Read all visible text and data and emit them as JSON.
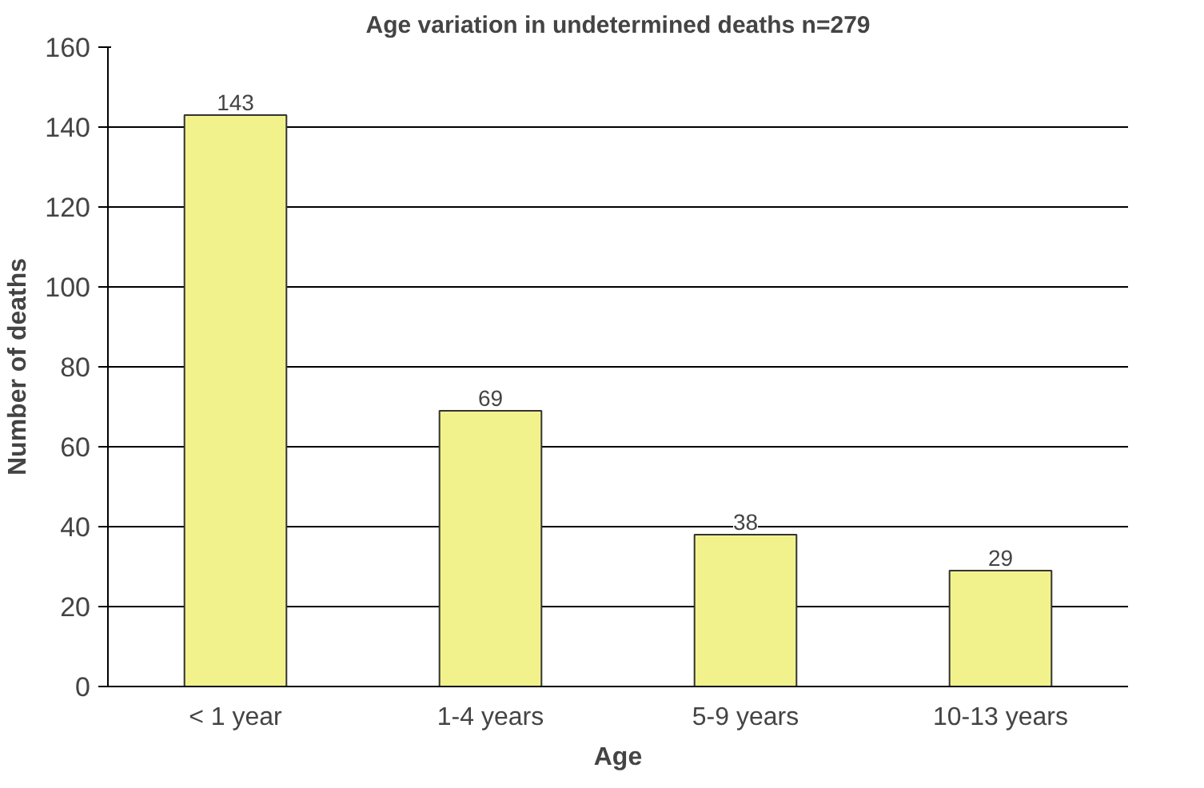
{
  "chart_data": {
    "type": "bar",
    "title": "Age variation in undetermined deaths n=279",
    "xlabel": "Age",
    "ylabel": "Number of deaths",
    "categories": [
      "< 1 year",
      "1-4 years",
      "5-9 years",
      "10-13 years"
    ],
    "values": [
      143,
      69,
      38,
      29
    ],
    "color": "#f2f28c",
    "ylim": [
      0,
      160
    ],
    "yticks": [
      0,
      20,
      40,
      60,
      80,
      100,
      120,
      140,
      160
    ],
    "grid": "y",
    "data_labels": true
  }
}
